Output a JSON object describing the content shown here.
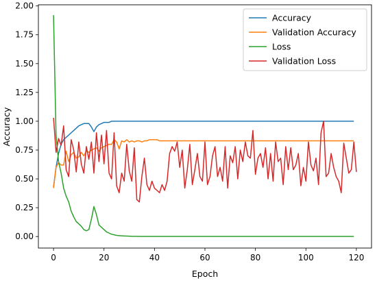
{
  "chart_data": {
    "type": "line",
    "title": "",
    "xlabel": "Epoch",
    "ylabel": "Accuracy",
    "xlim": [
      -6,
      126
    ],
    "ylim": [
      -0.1,
      2.01
    ],
    "xticks": [
      0,
      20,
      40,
      60,
      80,
      100,
      120
    ],
    "yticks": [
      0.0,
      0.25,
      0.5,
      0.75,
      1.0,
      1.25,
      1.5,
      1.75,
      2.0
    ],
    "ytick_labels": [
      "0.00",
      "0.25",
      "0.50",
      "0.75",
      "1.00",
      "1.25",
      "1.50",
      "1.75",
      "2.00"
    ],
    "grid": false,
    "legend_position": "upper right",
    "series": [
      {
        "name": "Accuracy",
        "color": "#1f77b4",
        "values": [
          0.43,
          0.6,
          0.72,
          0.8,
          0.84,
          0.86,
          0.88,
          0.9,
          0.92,
          0.94,
          0.96,
          0.97,
          0.98,
          0.98,
          0.98,
          0.95,
          0.91,
          0.95,
          0.97,
          0.98,
          0.99,
          0.99,
          0.99,
          1.0,
          1.0,
          1.0,
          1.0,
          1.0,
          1.0,
          1.0,
          1.0,
          1.0,
          1.0,
          1.0,
          1.0,
          1.0,
          1.0,
          1.0,
          1.0,
          1.0,
          1.0,
          1.0,
          1.0,
          1.0,
          1.0,
          1.0,
          1.0,
          1.0,
          1.0,
          1.0,
          1.0,
          1.0,
          1.0,
          1.0,
          1.0,
          1.0,
          1.0,
          1.0,
          1.0,
          1.0,
          1.0,
          1.0,
          1.0,
          1.0,
          1.0,
          1.0,
          1.0,
          1.0,
          1.0,
          1.0,
          1.0,
          1.0,
          1.0,
          1.0,
          1.0,
          1.0,
          1.0,
          1.0,
          1.0,
          1.0,
          1.0,
          1.0,
          1.0,
          1.0,
          1.0,
          1.0,
          1.0,
          1.0,
          1.0,
          1.0,
          1.0,
          1.0,
          1.0,
          1.0,
          1.0,
          1.0,
          1.0,
          1.0,
          1.0,
          1.0,
          1.0,
          1.0,
          1.0,
          1.0,
          1.0,
          1.0,
          1.0,
          1.0,
          1.0,
          1.0,
          1.0,
          1.0,
          1.0,
          1.0,
          1.0,
          1.0,
          1.0,
          1.0,
          1.0,
          1.0
        ]
      },
      {
        "name": "Validation Accuracy",
        "color": "#ff7f0e",
        "values": [
          0.42,
          0.6,
          0.64,
          0.62,
          0.62,
          0.74,
          0.65,
          0.71,
          0.73,
          0.68,
          0.69,
          0.73,
          0.7,
          0.74,
          0.73,
          0.75,
          0.76,
          0.77,
          0.74,
          0.77,
          0.78,
          0.79,
          0.8,
          0.8,
          0.84,
          0.82,
          0.76,
          0.83,
          0.82,
          0.84,
          0.82,
          0.83,
          0.82,
          0.83,
          0.83,
          0.82,
          0.83,
          0.83,
          0.84,
          0.84,
          0.84,
          0.84,
          0.83,
          0.83,
          0.83,
          0.83,
          0.83,
          0.83,
          0.83,
          0.83,
          0.83,
          0.83,
          0.83,
          0.83,
          0.83,
          0.83,
          0.83,
          0.83,
          0.83,
          0.83,
          0.83,
          0.83,
          0.83,
          0.83,
          0.83,
          0.83,
          0.83,
          0.83,
          0.83,
          0.83,
          0.83,
          0.83,
          0.83,
          0.83,
          0.83,
          0.83,
          0.83,
          0.83,
          0.83,
          0.83,
          0.83,
          0.83,
          0.83,
          0.83,
          0.83,
          0.83,
          0.83,
          0.83,
          0.83,
          0.83,
          0.83,
          0.83,
          0.83,
          0.83,
          0.83,
          0.83,
          0.83,
          0.83,
          0.83,
          0.83,
          0.83,
          0.83,
          0.83,
          0.83,
          0.83,
          0.83,
          0.83,
          0.83,
          0.83,
          0.83,
          0.83,
          0.83,
          0.83,
          0.83,
          0.83,
          0.83,
          0.83,
          0.83,
          0.83,
          0.83
        ]
      },
      {
        "name": "Loss",
        "color": "#2ca02c",
        "values": [
          1.92,
          0.88,
          0.65,
          0.55,
          0.42,
          0.35,
          0.3,
          0.22,
          0.17,
          0.13,
          0.11,
          0.09,
          0.06,
          0.05,
          0.06,
          0.15,
          0.26,
          0.19,
          0.1,
          0.08,
          0.06,
          0.04,
          0.03,
          0.02,
          0.015,
          0.01,
          0.008,
          0.006,
          0.005,
          0.004,
          0.003,
          0.002,
          0.002,
          0.002,
          0.001,
          0.001,
          0.001,
          0.001,
          0.001,
          0.001,
          0.001,
          0.001,
          0.001,
          0.001,
          0.001,
          0.001,
          0.001,
          0.001,
          0.001,
          0.001,
          0.001,
          0.001,
          0.001,
          0.001,
          0.001,
          0.001,
          0.001,
          0.001,
          0.001,
          0.001,
          0.001,
          0.001,
          0.001,
          0.001,
          0.001,
          0.001,
          0.001,
          0.001,
          0.001,
          0.001,
          0.001,
          0.001,
          0.001,
          0.001,
          0.001,
          0.001,
          0.001,
          0.001,
          0.001,
          0.001,
          0.001,
          0.001,
          0.001,
          0.001,
          0.001,
          0.001,
          0.001,
          0.001,
          0.001,
          0.001,
          0.001,
          0.001,
          0.001,
          0.001,
          0.001,
          0.001,
          0.001,
          0.001,
          0.001,
          0.001,
          0.001,
          0.001,
          0.001,
          0.001,
          0.001,
          0.001,
          0.001,
          0.001,
          0.001,
          0.001,
          0.001,
          0.001,
          0.001,
          0.001,
          0.001,
          0.001,
          0.001,
          0.001,
          0.001,
          0.001
        ]
      },
      {
        "name": "Validation Loss",
        "color": "#d62728",
        "values": [
          1.03,
          0.73,
          0.85,
          0.79,
          0.96,
          0.58,
          0.52,
          0.84,
          0.75,
          0.56,
          0.82,
          0.63,
          0.55,
          0.78,
          0.67,
          0.82,
          0.55,
          0.9,
          0.65,
          0.88,
          0.63,
          0.92,
          0.55,
          0.5,
          0.9,
          0.44,
          0.38,
          0.55,
          0.48,
          0.8,
          0.57,
          0.48,
          0.77,
          0.32,
          0.3,
          0.52,
          0.68,
          0.45,
          0.4,
          0.48,
          0.42,
          0.4,
          0.38,
          0.45,
          0.4,
          0.48,
          0.72,
          0.78,
          0.74,
          0.82,
          0.6,
          0.75,
          0.42,
          0.58,
          0.8,
          0.45,
          0.58,
          0.72,
          0.52,
          0.48,
          0.82,
          0.45,
          0.52,
          0.7,
          0.78,
          0.52,
          0.6,
          0.48,
          0.78,
          0.42,
          0.7,
          0.64,
          0.78,
          0.5,
          0.75,
          0.65,
          0.82,
          0.7,
          0.68,
          0.92,
          0.54,
          0.68,
          0.72,
          0.6,
          0.77,
          0.5,
          0.72,
          0.48,
          0.82,
          0.65,
          0.68,
          0.45,
          0.78,
          0.58,
          0.77,
          0.58,
          0.62,
          0.72,
          0.44,
          0.6,
          0.48,
          0.82,
          0.62,
          0.57,
          0.68,
          0.45,
          0.9,
          1.0,
          0.52,
          0.55,
          0.72,
          0.6,
          0.52,
          0.48,
          0.38,
          0.81,
          0.68,
          0.55,
          0.58,
          0.82,
          0.56
        ]
      }
    ]
  }
}
